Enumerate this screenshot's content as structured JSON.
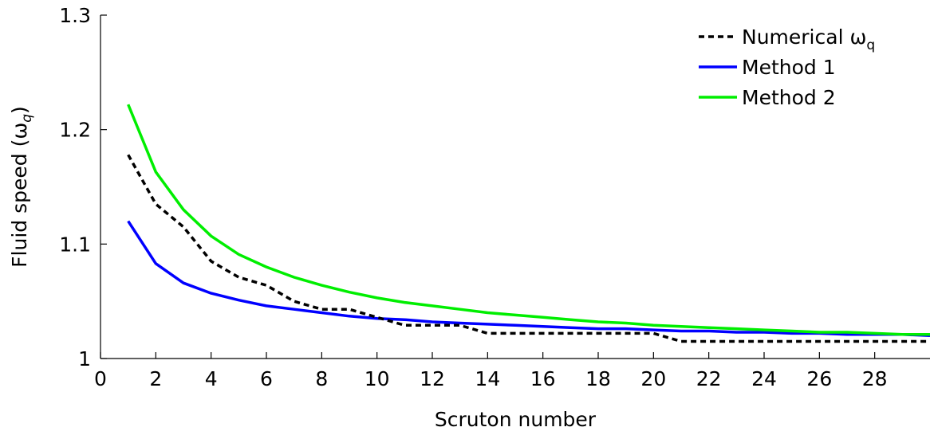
{
  "chart_data": {
    "type": "line",
    "xlabel": "Scruton number",
    "ylabel": "Fluid speed (ω",
    "ylabel_sub": "q",
    "ylabel_tail": ")",
    "xlim": [
      0,
      30
    ],
    "ylim": [
      1,
      1.3
    ],
    "xticks": [
      0,
      2,
      4,
      6,
      8,
      10,
      12,
      14,
      16,
      18,
      20,
      22,
      24,
      26,
      28
    ],
    "yticks": [
      1,
      1.1,
      1.2,
      1.3
    ],
    "ytick_labels": [
      "1",
      "1.1",
      "1.2",
      "1.3"
    ],
    "grid": false,
    "legend_position": "top-right",
    "series": [
      {
        "name": "Numerical ω",
        "name_sub": "q",
        "color": "#000000",
        "style": "dashed",
        "x": [
          1,
          2,
          3,
          4,
          5,
          6,
          7,
          8,
          9,
          10,
          11,
          12,
          13,
          14,
          15,
          16,
          17,
          18,
          19,
          20,
          21,
          22,
          23,
          24,
          25,
          26,
          27,
          28,
          29,
          30
        ],
        "y": [
          1.178,
          1.135,
          1.115,
          1.085,
          1.071,
          1.064,
          1.05,
          1.043,
          1.043,
          1.036,
          1.029,
          1.029,
          1.029,
          1.022,
          1.022,
          1.022,
          1.022,
          1.022,
          1.022,
          1.022,
          1.015,
          1.015,
          1.015,
          1.015,
          1.015,
          1.015,
          1.015,
          1.015,
          1.015,
          1.015
        ]
      },
      {
        "name": "Method 1",
        "color": "#0000ff",
        "style": "solid",
        "x": [
          1,
          2,
          3,
          4,
          5,
          6,
          7,
          8,
          9,
          10,
          11,
          12,
          13,
          14,
          15,
          16,
          17,
          18,
          19,
          20,
          21,
          22,
          23,
          24,
          25,
          26,
          27,
          28,
          29,
          30
        ],
        "y": [
          1.12,
          1.083,
          1.066,
          1.057,
          1.051,
          1.046,
          1.043,
          1.04,
          1.037,
          1.035,
          1.034,
          1.032,
          1.031,
          1.03,
          1.029,
          1.028,
          1.027,
          1.026,
          1.026,
          1.025,
          1.024,
          1.024,
          1.023,
          1.023,
          1.022,
          1.022,
          1.021,
          1.021,
          1.021,
          1.02
        ]
      },
      {
        "name": "Method 2",
        "color": "#00ee00",
        "style": "solid",
        "x": [
          1,
          2,
          3,
          4,
          5,
          6,
          7,
          8,
          9,
          10,
          11,
          12,
          13,
          14,
          15,
          16,
          17,
          18,
          19,
          20,
          21,
          22,
          23,
          24,
          25,
          26,
          27,
          28,
          29,
          30
        ],
        "y": [
          1.222,
          1.163,
          1.13,
          1.107,
          1.091,
          1.08,
          1.071,
          1.064,
          1.058,
          1.053,
          1.049,
          1.046,
          1.043,
          1.04,
          1.038,
          1.036,
          1.034,
          1.032,
          1.031,
          1.029,
          1.028,
          1.027,
          1.026,
          1.025,
          1.024,
          1.023,
          1.023,
          1.022,
          1.021,
          1.021
        ]
      }
    ]
  }
}
